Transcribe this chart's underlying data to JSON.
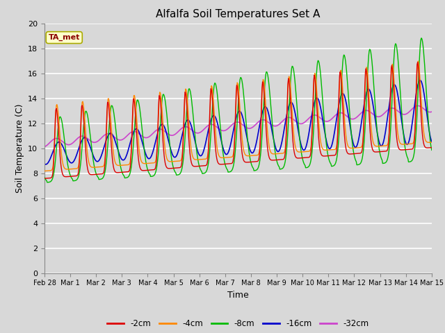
{
  "title": "Alfalfa Soil Temperatures Set A",
  "xlabel": "Time",
  "ylabel": "Soil Temperature (C)",
  "ylim": [
    0,
    20
  ],
  "yticks": [
    0,
    2,
    4,
    6,
    8,
    10,
    12,
    14,
    16,
    18,
    20
  ],
  "bg_color": "#d8d8d8",
  "plot_bg_color": "#d8d8d8",
  "annotation_text": "TA_met",
  "annotation_bg": "#ffffcc",
  "annotation_fg": "#8b0000",
  "annotation_edge": "#aaaa00",
  "series_colors": {
    "-2cm": "#dd0000",
    "-4cm": "#ff8800",
    "-8cm": "#00bb00",
    "-16cm": "#0000cc",
    "-32cm": "#cc44cc"
  },
  "xtick_labels": [
    "Feb 28",
    "Mar 1",
    "Mar 2",
    "Mar 3",
    "Mar 4",
    "Mar 5",
    "Mar 6",
    "Mar 7",
    "Mar 8",
    "Mar 9",
    "Mar 10",
    "Mar 11",
    "Mar 12",
    "Mar 13",
    "Mar 14",
    "Mar 15"
  ]
}
